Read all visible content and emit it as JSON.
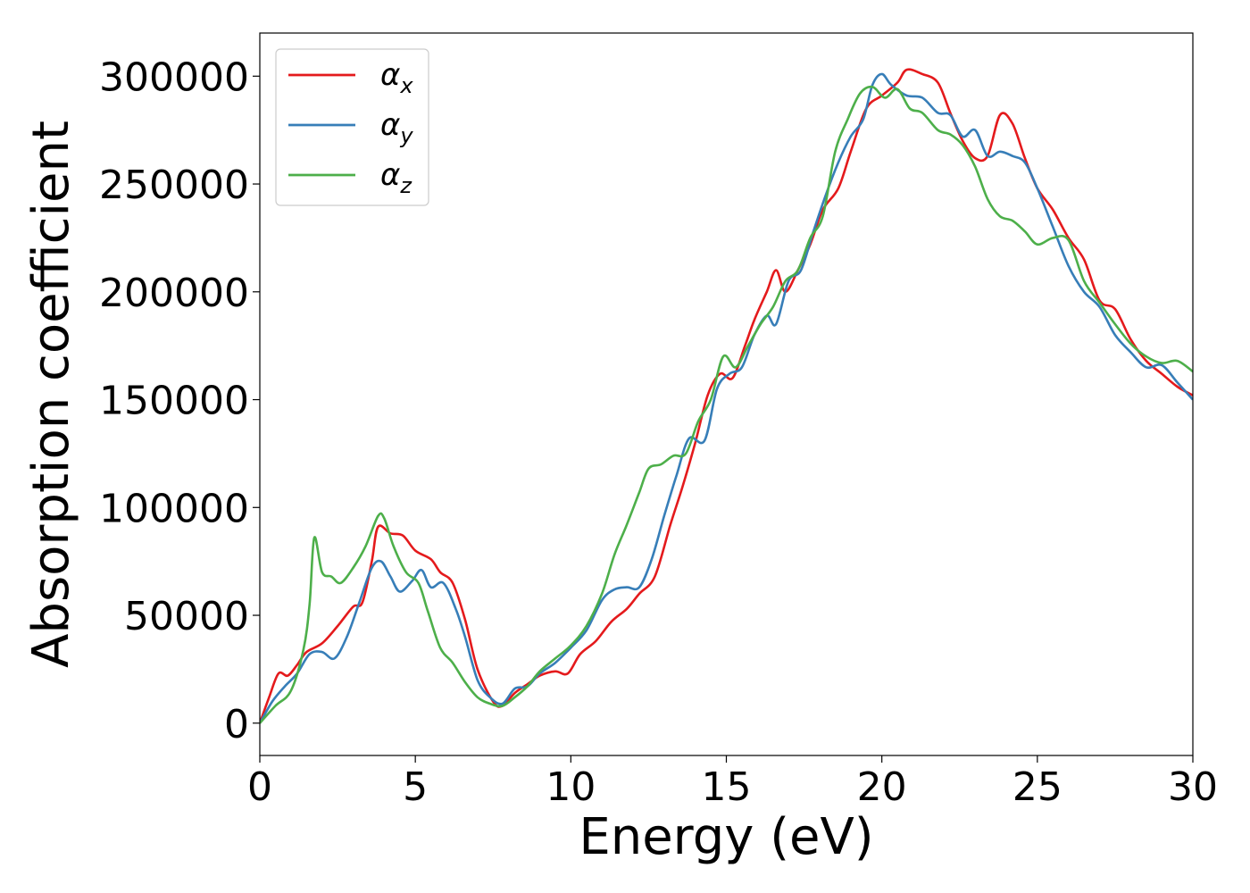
{
  "chart_data": {
    "type": "line",
    "title": "",
    "xlabel": "Energy (eV)",
    "ylabel": "Absorption coefficient",
    "xlim": [
      0,
      30
    ],
    "ylim": [
      -15000,
      320000
    ],
    "xticks": [
      "0",
      "5",
      "10",
      "15",
      "20",
      "25",
      "30"
    ],
    "xtick_values": [
      0,
      5,
      10,
      15,
      20,
      25,
      30
    ],
    "yticks": [
      "0",
      "50000",
      "100000",
      "150000",
      "200000",
      "250000",
      "300000"
    ],
    "ytick_values": [
      0,
      50000,
      100000,
      150000,
      200000,
      250000,
      300000
    ],
    "grid": false,
    "legend_position": "top-left",
    "series": [
      {
        "name": "αx",
        "legend_symbol": "α",
        "legend_sub": "x",
        "color": "#e41a1c",
        "points": [
          [
            0,
            0
          ],
          [
            0.3,
            12000
          ],
          [
            0.6,
            23000
          ],
          [
            0.9,
            22000
          ],
          [
            1.2,
            27000
          ],
          [
            1.5,
            33000
          ],
          [
            2.0,
            37000
          ],
          [
            2.5,
            45000
          ],
          [
            3.0,
            54000
          ],
          [
            3.3,
            56000
          ],
          [
            3.6,
            75000
          ],
          [
            3.8,
            91000
          ],
          [
            4.2,
            88000
          ],
          [
            4.6,
            87000
          ],
          [
            5.0,
            80000
          ],
          [
            5.5,
            76000
          ],
          [
            5.8,
            70000
          ],
          [
            6.2,
            65000
          ],
          [
            6.6,
            48000
          ],
          [
            7.0,
            25000
          ],
          [
            7.5,
            10000
          ],
          [
            7.8,
            8000
          ],
          [
            8.2,
            14000
          ],
          [
            8.6,
            18000
          ],
          [
            9.0,
            22000
          ],
          [
            9.5,
            24000
          ],
          [
            9.9,
            23000
          ],
          [
            10.3,
            32000
          ],
          [
            10.8,
            38000
          ],
          [
            11.3,
            47000
          ],
          [
            11.8,
            53000
          ],
          [
            12.2,
            60000
          ],
          [
            12.7,
            68000
          ],
          [
            13.2,
            92000
          ],
          [
            13.6,
            110000
          ],
          [
            14.0,
            130000
          ],
          [
            14.4,
            152000
          ],
          [
            14.8,
            162000
          ],
          [
            15.2,
            160000
          ],
          [
            15.6,
            175000
          ],
          [
            15.9,
            187000
          ],
          [
            16.3,
            200000
          ],
          [
            16.6,
            210000
          ],
          [
            16.9,
            200000
          ],
          [
            17.3,
            210000
          ],
          [
            17.7,
            222000
          ],
          [
            18.1,
            238000
          ],
          [
            18.6,
            248000
          ],
          [
            19.0,
            265000
          ],
          [
            19.5,
            285000
          ],
          [
            20.0,
            291000
          ],
          [
            20.5,
            297000
          ],
          [
            20.8,
            303000
          ],
          [
            21.3,
            301000
          ],
          [
            21.8,
            297000
          ],
          [
            22.2,
            283000
          ],
          [
            22.6,
            270000
          ],
          [
            23.0,
            262000
          ],
          [
            23.4,
            263000
          ],
          [
            23.8,
            282000
          ],
          [
            24.2,
            278000
          ],
          [
            24.6,
            262000
          ],
          [
            25.0,
            248000
          ],
          [
            25.5,
            238000
          ],
          [
            26.0,
            225000
          ],
          [
            26.5,
            215000
          ],
          [
            27.0,
            196000
          ],
          [
            27.5,
            192000
          ],
          [
            28.0,
            178000
          ],
          [
            28.5,
            168000
          ],
          [
            29.0,
            162000
          ],
          [
            29.5,
            156000
          ],
          [
            30.0,
            152000
          ]
        ]
      },
      {
        "name": "αy",
        "legend_symbol": "α",
        "legend_sub": "y",
        "color": "#377eb8",
        "points": [
          [
            0,
            0
          ],
          [
            0.4,
            10000
          ],
          [
            0.8,
            17000
          ],
          [
            1.2,
            23000
          ],
          [
            1.6,
            32000
          ],
          [
            2.0,
            33000
          ],
          [
            2.4,
            30000
          ],
          [
            2.8,
            40000
          ],
          [
            3.2,
            56000
          ],
          [
            3.6,
            72000
          ],
          [
            3.9,
            75000
          ],
          [
            4.2,
            68000
          ],
          [
            4.5,
            61000
          ],
          [
            4.9,
            66000
          ],
          [
            5.2,
            71000
          ],
          [
            5.5,
            63000
          ],
          [
            5.9,
            65000
          ],
          [
            6.3,
            53000
          ],
          [
            6.6,
            40000
          ],
          [
            7.0,
            20000
          ],
          [
            7.4,
            12000
          ],
          [
            7.8,
            9000
          ],
          [
            8.2,
            16000
          ],
          [
            8.6,
            17000
          ],
          [
            9.0,
            23000
          ],
          [
            9.5,
            28000
          ],
          [
            10.0,
            35000
          ],
          [
            10.5,
            43000
          ],
          [
            11.0,
            57000
          ],
          [
            11.4,
            62000
          ],
          [
            11.8,
            63000
          ],
          [
            12.2,
            63000
          ],
          [
            12.6,
            76000
          ],
          [
            13.0,
            96000
          ],
          [
            13.4,
            115000
          ],
          [
            13.8,
            132000
          ],
          [
            14.3,
            131000
          ],
          [
            14.7,
            155000
          ],
          [
            15.1,
            162000
          ],
          [
            15.5,
            165000
          ],
          [
            15.9,
            180000
          ],
          [
            16.3,
            189000
          ],
          [
            16.6,
            185000
          ],
          [
            17.0,
            205000
          ],
          [
            17.4,
            210000
          ],
          [
            17.8,
            228000
          ],
          [
            18.2,
            245000
          ],
          [
            18.6,
            260000
          ],
          [
            19.0,
            272000
          ],
          [
            19.4,
            280000
          ],
          [
            19.7,
            296000
          ],
          [
            20.0,
            301000
          ],
          [
            20.3,
            296000
          ],
          [
            20.8,
            291000
          ],
          [
            21.3,
            290000
          ],
          [
            21.8,
            283000
          ],
          [
            22.2,
            282000
          ],
          [
            22.6,
            272000
          ],
          [
            23.0,
            275000
          ],
          [
            23.4,
            263000
          ],
          [
            23.8,
            265000
          ],
          [
            24.2,
            263000
          ],
          [
            24.6,
            260000
          ],
          [
            25.0,
            248000
          ],
          [
            25.5,
            230000
          ],
          [
            26.0,
            212000
          ],
          [
            26.5,
            200000
          ],
          [
            27.0,
            193000
          ],
          [
            27.5,
            180000
          ],
          [
            28.0,
            172000
          ],
          [
            28.5,
            165000
          ],
          [
            29.0,
            166000
          ],
          [
            29.5,
            158000
          ],
          [
            30.0,
            150000
          ]
        ]
      },
      {
        "name": "αz",
        "legend_symbol": "α",
        "legend_sub": "z",
        "color": "#4daf4a",
        "points": [
          [
            0,
            0
          ],
          [
            0.5,
            8000
          ],
          [
            1.0,
            15000
          ],
          [
            1.4,
            34000
          ],
          [
            1.6,
            55000
          ],
          [
            1.75,
            86000
          ],
          [
            2.0,
            70000
          ],
          [
            2.3,
            68000
          ],
          [
            2.6,
            65000
          ],
          [
            3.0,
            72000
          ],
          [
            3.4,
            82000
          ],
          [
            3.8,
            96000
          ],
          [
            4.0,
            95000
          ],
          [
            4.3,
            82000
          ],
          [
            4.7,
            70000
          ],
          [
            5.1,
            65000
          ],
          [
            5.4,
            52000
          ],
          [
            5.8,
            35000
          ],
          [
            6.2,
            28000
          ],
          [
            6.6,
            19000
          ],
          [
            7.0,
            12000
          ],
          [
            7.4,
            9000
          ],
          [
            7.8,
            8000
          ],
          [
            8.2,
            12000
          ],
          [
            8.6,
            17000
          ],
          [
            9.0,
            24000
          ],
          [
            9.5,
            30000
          ],
          [
            10.0,
            36000
          ],
          [
            10.5,
            45000
          ],
          [
            11.0,
            60000
          ],
          [
            11.4,
            78000
          ],
          [
            11.8,
            92000
          ],
          [
            12.2,
            107000
          ],
          [
            12.5,
            118000
          ],
          [
            12.9,
            120000
          ],
          [
            13.3,
            124000
          ],
          [
            13.7,
            125000
          ],
          [
            14.1,
            140000
          ],
          [
            14.5,
            150000
          ],
          [
            14.9,
            170000
          ],
          [
            15.3,
            165000
          ],
          [
            15.7,
            175000
          ],
          [
            16.1,
            185000
          ],
          [
            16.5,
            193000
          ],
          [
            16.9,
            205000
          ],
          [
            17.3,
            210000
          ],
          [
            17.7,
            225000
          ],
          [
            18.1,
            235000
          ],
          [
            18.5,
            265000
          ],
          [
            18.9,
            280000
          ],
          [
            19.3,
            292000
          ],
          [
            19.7,
            295000
          ],
          [
            20.1,
            290000
          ],
          [
            20.5,
            294000
          ],
          [
            20.9,
            285000
          ],
          [
            21.3,
            283000
          ],
          [
            21.8,
            275000
          ],
          [
            22.2,
            273000
          ],
          [
            22.6,
            268000
          ],
          [
            23.0,
            258000
          ],
          [
            23.4,
            243000
          ],
          [
            23.8,
            235000
          ],
          [
            24.2,
            233000
          ],
          [
            24.6,
            228000
          ],
          [
            25.0,
            222000
          ],
          [
            25.5,
            225000
          ],
          [
            26.0,
            224000
          ],
          [
            26.5,
            205000
          ],
          [
            27.0,
            195000
          ],
          [
            27.5,
            185000
          ],
          [
            28.0,
            176000
          ],
          [
            28.5,
            170000
          ],
          [
            29.0,
            167000
          ],
          [
            29.5,
            168000
          ],
          [
            30.0,
            163000
          ]
        ]
      }
    ]
  }
}
